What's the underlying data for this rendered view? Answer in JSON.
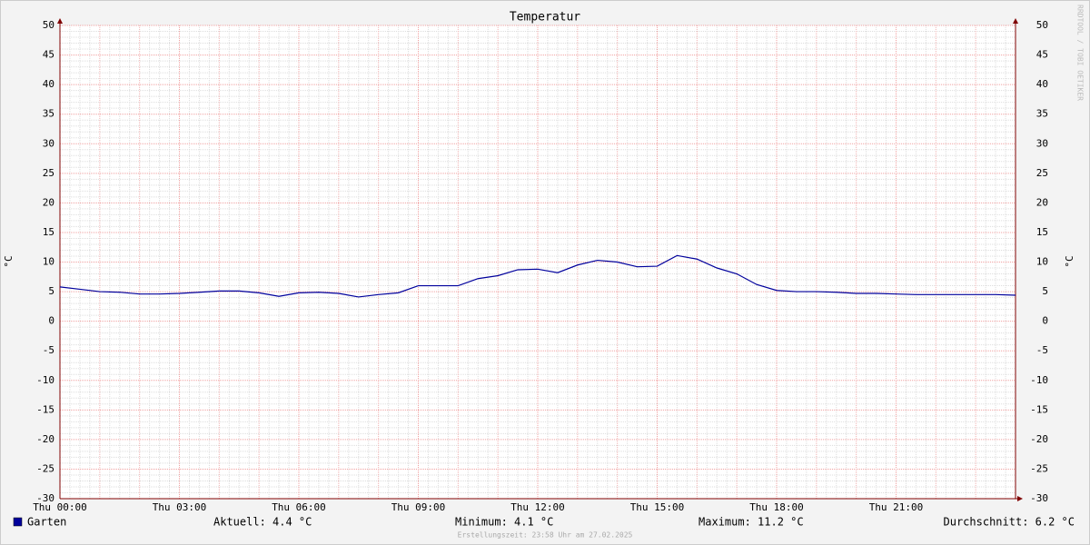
{
  "chart_data": {
    "type": "line",
    "title": "Temperatur",
    "ylabel": "°C",
    "watermark": "RRDTOOL / TOBI OETIKER",
    "x": [
      0,
      0.5,
      1,
      1.5,
      2,
      2.5,
      3,
      3.5,
      4,
      4.5,
      5,
      5.5,
      6,
      6.5,
      7,
      7.5,
      8,
      8.5,
      9,
      9.5,
      10,
      10.5,
      11,
      11.5,
      12,
      12.5,
      13,
      13.5,
      14,
      14.5,
      15,
      15.5,
      16,
      16.5,
      17,
      17.5,
      18,
      18.5,
      19,
      19.5,
      20,
      20.5,
      21,
      21.5,
      22,
      22.5,
      23,
      23.5,
      24
    ],
    "series": [
      {
        "name": "Garten",
        "color": "#00009c",
        "values": [
          5.8,
          5.4,
          5.0,
          4.9,
          4.6,
          4.6,
          4.7,
          4.9,
          5.1,
          5.1,
          4.8,
          4.2,
          4.8,
          4.9,
          4.7,
          4.1,
          4.5,
          4.8,
          6.0,
          6.0,
          6.0,
          7.2,
          7.7,
          8.7,
          8.8,
          8.2,
          9.5,
          10.3,
          10.0,
          9.2,
          9.3,
          11.1,
          10.5,
          9.0,
          8.0,
          6.2,
          5.2,
          5.0,
          5.0,
          4.9,
          4.7,
          4.7,
          4.6,
          4.5,
          4.5,
          4.5,
          4.5,
          4.5,
          4.4
        ]
      }
    ],
    "xlim": [
      0,
      24
    ],
    "xticks": [
      {
        "value": 0,
        "label": "Thu 00:00"
      },
      {
        "value": 3,
        "label": "Thu 03:00"
      },
      {
        "value": 6,
        "label": "Thu 06:00"
      },
      {
        "value": 9,
        "label": "Thu 09:00"
      },
      {
        "value": 12,
        "label": "Thu 12:00"
      },
      {
        "value": 15,
        "label": "Thu 15:00"
      },
      {
        "value": 18,
        "label": "Thu 18:00"
      },
      {
        "value": 21,
        "label": "Thu 21:00"
      }
    ],
    "ylim": [
      -30,
      50
    ],
    "yticks": [
      -30,
      -25,
      -20,
      -15,
      -10,
      -5,
      0,
      5,
      10,
      15,
      20,
      25,
      30,
      35,
      40,
      45,
      50
    ],
    "grid": true,
    "stats": [
      "Aktuell: 4.4 °C",
      "Minimum: 4.1 °C",
      "Maximum: 11.2 °C",
      "Durchschnitt: 6.2 °C"
    ],
    "footer": "Erstellungszeit: 23:58 Uhr am 27.02.2025"
  }
}
